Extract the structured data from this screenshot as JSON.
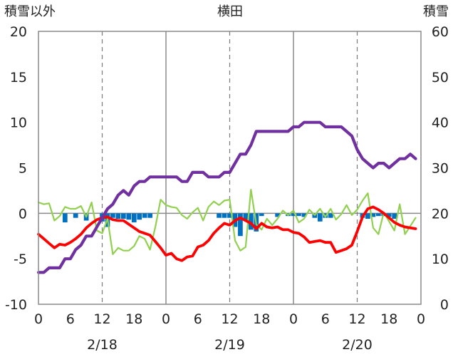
{
  "chart_data": {
    "type": "line",
    "title": "横田",
    "left_axis_title": "積雪以外",
    "right_axis_title": "積雪",
    "ylim": [
      -10,
      20
    ],
    "y_ticks": [
      "20",
      "15",
      "10",
      "5",
      "0",
      "-5",
      "-10"
    ],
    "y2lim": [
      0,
      60
    ],
    "y2_ticks": [
      "60",
      "50",
      "40",
      "30",
      "20",
      "10",
      "0"
    ],
    "xlim": [
      0,
      72
    ],
    "x_tick_labels": [
      "0",
      "6",
      "12",
      "18",
      "0",
      "6",
      "12",
      "18",
      "0",
      "6",
      "12",
      "18",
      "0"
    ],
    "date_labels": [
      {
        "x": 12,
        "label": "2/18"
      },
      {
        "x": 36,
        "label": "2/19"
      },
      {
        "x": 60,
        "label": "2/20"
      }
    ],
    "grid": "dashed at 12h, solid at day boundaries",
    "colors": {
      "snow_depth": "#7030a0",
      "temperature": "#ff0000",
      "precip_bars": "#0070c0",
      "other_line": "#92d050"
    },
    "series": [
      {
        "key": "snow_depth",
        "axis": "right",
        "x": [
          0,
          1,
          2,
          3,
          4,
          5,
          6,
          7,
          8,
          9,
          10,
          11,
          12,
          13,
          14,
          15,
          16,
          17,
          18,
          19,
          20,
          21,
          22,
          23,
          24,
          25,
          26,
          27,
          28,
          29,
          30,
          31,
          32,
          33,
          34,
          35,
          36,
          37,
          38,
          39,
          40,
          41,
          42,
          43,
          44,
          45,
          46,
          47,
          48,
          49,
          50,
          51,
          52,
          53,
          54,
          55,
          56,
          57,
          58,
          59,
          60,
          61,
          62,
          63,
          64,
          65,
          66,
          67,
          68,
          69,
          70,
          71
        ],
        "y": [
          7,
          7,
          8,
          8,
          8,
          10,
          10,
          12,
          13,
          15,
          15,
          17,
          19,
          21,
          22,
          24,
          25,
          24,
          26,
          27,
          27,
          28,
          28,
          28,
          28,
          28,
          28,
          27,
          27,
          29,
          29,
          29,
          28,
          28,
          28,
          29,
          29,
          31,
          33,
          33,
          35,
          38,
          38,
          38,
          38,
          38,
          38,
          38,
          39,
          39,
          40,
          40,
          40,
          40,
          39,
          39,
          39,
          39,
          38,
          37,
          34,
          32,
          31,
          30,
          31,
          31,
          30,
          31,
          32,
          32,
          33,
          32
        ]
      },
      {
        "key": "temperature",
        "axis": "left",
        "x": [
          0,
          1,
          2,
          3,
          4,
          5,
          6,
          7,
          8,
          9,
          10,
          11,
          12,
          13,
          14,
          15,
          16,
          17,
          18,
          19,
          20,
          21,
          22,
          23,
          24,
          25,
          26,
          27,
          28,
          29,
          30,
          31,
          32,
          33,
          34,
          35,
          36,
          37,
          38,
          39,
          40,
          41,
          42,
          43,
          44,
          45,
          46,
          47,
          48,
          49,
          50,
          51,
          52,
          53,
          54,
          55,
          56,
          57,
          58,
          59,
          60,
          61,
          62,
          63,
          64,
          65,
          66,
          67,
          68,
          69,
          70,
          71
        ],
        "y": [
          -2.3,
          -2.8,
          -3.3,
          -3.8,
          -3.4,
          -3.5,
          -3.2,
          -2.8,
          -2.3,
          -1.6,
          -1.1,
          -0.7,
          -0.5,
          -0.4,
          -0.7,
          -0.8,
          -0.8,
          -1.2,
          -1.6,
          -2.0,
          -2.2,
          -2.4,
          -3.1,
          -3.8,
          -4.6,
          -4.4,
          -5.0,
          -5.2,
          -4.8,
          -4.7,
          -3.7,
          -3.5,
          -3.0,
          -2.2,
          -1.6,
          -1.1,
          -1.3,
          -0.8,
          -0.5,
          -0.8,
          -1.1,
          -1.7,
          -1.1,
          -1.5,
          -1.6,
          -1.5,
          -1.8,
          -1.8,
          -2.1,
          -2.2,
          -2.6,
          -3.2,
          -3.1,
          -3.0,
          -3.2,
          -3.2,
          -4.3,
          -4.1,
          -3.9,
          -3.5,
          -2.0,
          -0.4,
          0.5,
          0.7,
          0.4,
          0.0,
          -0.5,
          -1.0,
          -1.3,
          -1.5,
          -1.6,
          -1.7
        ]
      },
      {
        "key": "other_line",
        "axis": "left",
        "x": [
          0,
          1,
          2,
          3,
          4,
          5,
          6,
          7,
          8,
          9,
          10,
          11,
          12,
          13,
          14,
          15,
          16,
          17,
          18,
          19,
          20,
          21,
          22,
          23,
          24,
          25,
          26,
          27,
          28,
          29,
          30,
          31,
          32,
          33,
          34,
          35,
          36,
          37,
          38,
          39,
          40,
          41,
          42,
          43,
          44,
          45,
          46,
          47,
          48,
          49,
          50,
          51,
          52,
          53,
          54,
          55,
          56,
          57,
          58,
          59,
          60,
          61,
          62,
          63,
          64,
          65,
          66,
          67,
          68,
          69,
          70,
          71
        ],
        "y": [
          1.2,
          1.0,
          1.1,
          -0.8,
          -0.3,
          0.7,
          0.5,
          0.5,
          0.8,
          -0.4,
          1.2,
          -1.9,
          -2.2,
          -0.6,
          -4.5,
          -3.8,
          -4.1,
          -4.1,
          -3.6,
          -2.5,
          -2.8,
          -4.0,
          -1.5,
          1.5,
          0.9,
          0.7,
          0.6,
          -0.2,
          -0.6,
          0.1,
          0.6,
          -0.8,
          0.7,
          1.3,
          0.9,
          1.4,
          1.5,
          -3.0,
          -4.1,
          -3.7,
          2.6,
          -1.2,
          -1.8,
          -0.6,
          -1.3,
          -0.6,
          0.3,
          -0.2,
          0.3,
          -1.0,
          -0.6,
          0.4,
          -0.2,
          0.5,
          -0.4,
          0.5,
          -0.7,
          -0.1,
          0.9,
          -0.2,
          0.4,
          1.4,
          2.2,
          -1.6,
          -2.3,
          0.1,
          -0.9,
          -1.9,
          1.0,
          -2.3,
          -1.4,
          -0.5
        ]
      },
      {
        "key": "precip_bars",
        "axis": "left",
        "x": [
          5,
          7,
          9,
          12,
          13,
          14,
          15,
          16,
          17,
          18,
          19,
          20,
          21,
          34,
          35,
          36,
          37,
          38,
          39,
          40,
          41,
          42,
          45,
          47,
          48,
          49,
          50,
          52,
          53,
          54,
          55,
          61,
          62,
          63,
          64,
          65,
          66,
          67
        ],
        "y": [
          -1.0,
          -0.5,
          -0.8,
          -0.9,
          -1.5,
          -0.5,
          -0.6,
          -0.6,
          -0.7,
          -1.0,
          -0.7,
          -0.5,
          -0.5,
          -0.5,
          -0.5,
          -0.5,
          -1.5,
          -2.5,
          -0.8,
          -1.8,
          -2.0,
          -0.3,
          -0.4,
          -0.3,
          -0.3,
          -0.3,
          -0.4,
          -0.5,
          -0.9,
          -0.5,
          -0.5,
          -0.5,
          -0.6,
          -0.4,
          -0.3,
          -0.3,
          -0.4,
          -0.6
        ]
      }
    ]
  }
}
